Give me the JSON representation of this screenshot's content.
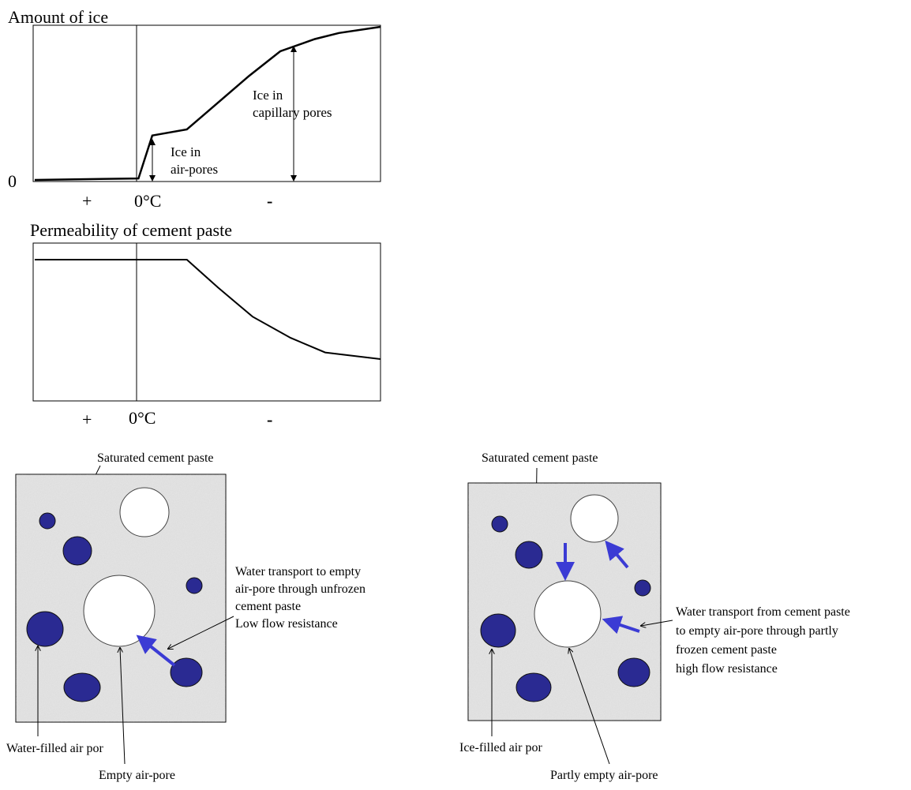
{
  "top_chart": {
    "title": "Amount of ice",
    "zero_label": "0",
    "x_plus": "+",
    "x_zero": "0°C",
    "x_minus": "-",
    "note_air": [
      "Ice in",
      "air-pores"
    ],
    "note_capillary": [
      "Ice in",
      "capillary pores"
    ]
  },
  "bottom_chart": {
    "title": "Permeability of cement paste",
    "x_plus": "+",
    "x_zero": "0°C",
    "x_minus": "-"
  },
  "chart_data": [
    {
      "type": "line",
      "title": "Amount of ice",
      "xlabel": "",
      "ylabel": "Amount of ice",
      "x_tick_labels": [
        "+",
        "0°C",
        "-"
      ],
      "y_tick_labels": [
        "0"
      ],
      "points_relative": [
        [
          0,
          0
        ],
        [
          0.3,
          0.01
        ],
        [
          0.34,
          0.29
        ],
        [
          0.44,
          0.33
        ],
        [
          0.62,
          0.68
        ],
        [
          0.71,
          0.84
        ],
        [
          0.81,
          0.92
        ],
        [
          0.88,
          0.96
        ],
        [
          1.0,
          1.0
        ]
      ]
    },
    {
      "type": "line",
      "title": "Permeability of cement paste",
      "xlabel": "",
      "ylabel": "",
      "x_tick_labels": [
        "+",
        "0°C",
        "-"
      ],
      "points_relative": [
        [
          0,
          1
        ],
        [
          0.44,
          1
        ],
        [
          0.53,
          0.79
        ],
        [
          0.63,
          0.57
        ],
        [
          0.74,
          0.41
        ],
        [
          0.84,
          0.3
        ],
        [
          1.0,
          0.25
        ]
      ]
    }
  ],
  "left_diagram": {
    "top_label": "Saturated cement paste",
    "right_label": [
      "Water transport to empty",
      "air-pore through unfrozen",
      "cement paste",
      "Low flow resistance"
    ],
    "bottom_left_label": "Water-filled air por",
    "bottom_label": "Empty air-pore"
  },
  "right_diagram": {
    "top_label": "Saturated cement paste",
    "right_label": [
      "Water transport from cement paste",
      "to empty air-pore through partly",
      "frozen cement paste",
      "high flow resistance"
    ],
    "bottom_left_label": "Ice-filled air por",
    "bottom_label": "Partly empty air-pore"
  },
  "colors": {
    "pore_fill": "#2a2a92",
    "arrow": "#3b3bd4",
    "paste": "#e6e6e6"
  }
}
